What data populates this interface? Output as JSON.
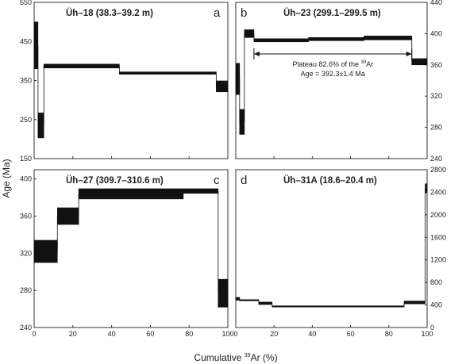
{
  "figure": {
    "ylabel": "Age (Ma)",
    "xlabel": "Cumulative ",
    "xlabel_sup": "39",
    "xlabel_tail": "Ar (%)"
  },
  "chart_data": [
    {
      "type": "step",
      "panel_letter": "a",
      "title": "Üh–18 (38.3–39.2 m)",
      "xlim": [
        0,
        100
      ],
      "ylim": [
        150,
        550
      ],
      "yaxis_side": "left",
      "xticks": [],
      "yticks": [
        150,
        250,
        350,
        450,
        550
      ],
      "steps": [
        {
          "x0": 0,
          "x1": 2,
          "age": 440,
          "err": 60
        },
        {
          "x0": 2,
          "x1": 5,
          "age": 235,
          "err": 32
        },
        {
          "x0": 5,
          "x1": 44,
          "age": 387,
          "err": 5
        },
        {
          "x0": 44,
          "x1": 94,
          "age": 369,
          "err": 3
        },
        {
          "x0": 94,
          "x1": 100,
          "age": 335,
          "err": 14
        }
      ]
    },
    {
      "type": "step",
      "panel_letter": "b",
      "title": "Üh–23 (299.1–299.5 m)",
      "xlim": [
        0,
        100
      ],
      "ylim": [
        240,
        440
      ],
      "yaxis_side": "right",
      "xticks": [],
      "yticks": [
        240,
        280,
        320,
        360,
        400,
        440
      ],
      "steps": [
        {
          "x0": 0,
          "x1": 2,
          "age": 342,
          "err": 20
        },
        {
          "x0": 2,
          "x1": 4.5,
          "age": 287,
          "err": 16
        },
        {
          "x0": 4.5,
          "x1": 9.5,
          "age": 400,
          "err": 5
        },
        {
          "x0": 9.5,
          "x1": 38,
          "age": 391.5,
          "err": 2
        },
        {
          "x0": 38,
          "x1": 67,
          "age": 393,
          "err": 2
        },
        {
          "x0": 67,
          "x1": 92,
          "age": 394.5,
          "err": 2.5
        },
        {
          "x0": 92,
          "x1": 100,
          "age": 364,
          "err": 4
        }
      ],
      "plateau": {
        "x0": 9.5,
        "x1": 92,
        "age": 374,
        "label_line1": "Plateau 82.6% of the ",
        "label_sup": "39",
        "label_line1_tail": "Ar",
        "label_line2": "Age = 392.3±1.4 Ma"
      }
    },
    {
      "type": "step",
      "panel_letter": "c",
      "title": "Üh–27 (309.7–310.6 m)",
      "xlim": [
        0,
        100
      ],
      "ylim": [
        240,
        410
      ],
      "yaxis_side": "left",
      "xticks": [
        0,
        20,
        40,
        60,
        80,
        100
      ],
      "yticks": [
        240,
        280,
        320,
        360,
        400
      ],
      "steps": [
        {
          "x0": 0,
          "x1": 12,
          "age": 322,
          "err": 12
        },
        {
          "x0": 12,
          "x1": 23,
          "age": 360,
          "err": 9
        },
        {
          "x0": 23,
          "x1": 77,
          "age": 384,
          "err": 5.5
        },
        {
          "x0": 77,
          "x1": 95,
          "age": 387,
          "err": 2.5
        },
        {
          "x0": 95,
          "x1": 100,
          "age": 277,
          "err": 15
        }
      ]
    },
    {
      "type": "step",
      "panel_letter": "d",
      "title": "Üh–31A (18.6–20.4 m)",
      "xlim": [
        0,
        100
      ],
      "ylim": [
        0,
        2800
      ],
      "yaxis_side": "right",
      "xticks": [
        0,
        20,
        40,
        60,
        80,
        100
      ],
      "yticks": [
        0,
        400,
        800,
        1200,
        1600,
        2000,
        2400,
        2800
      ],
      "steps": [
        {
          "x0": 0,
          "x1": 2,
          "age": 510,
          "err": 25
        },
        {
          "x0": 2,
          "x1": 12,
          "age": 490,
          "err": 5
        },
        {
          "x0": 12,
          "x1": 19,
          "age": 430,
          "err": 22
        },
        {
          "x0": 19,
          "x1": 88,
          "age": 380,
          "err": 5
        },
        {
          "x0": 88,
          "x1": 99,
          "age": 445,
          "err": 25
        },
        {
          "x0": 99,
          "x1": 100,
          "age": 2470,
          "err": 80
        }
      ]
    }
  ]
}
